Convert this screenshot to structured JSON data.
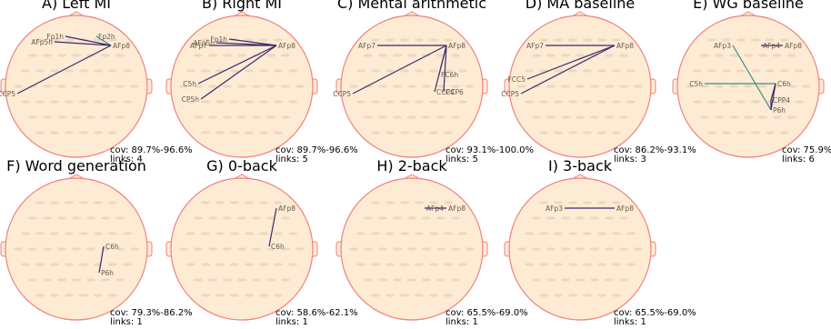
{
  "panels": [
    {
      "title": "A) Left MI",
      "coverage": "cov: 89.7%-96.6%",
      "links_text": "links: 4",
      "channels": [
        "Fp1h",
        "Fp2h",
        "AFp5h",
        "AFp8",
        "CCP5"
      ],
      "links": [
        [
          "Fp1h",
          "AFp8"
        ],
        [
          "Fp2h",
          "AFp8"
        ],
        [
          "AFp5h",
          "AFp8"
        ],
        [
          "CCP5",
          "AFp8"
        ]
      ]
    },
    {
      "title": "B) Right MI",
      "coverage": "cov: 89.7%-96.6%",
      "links_text": "links: 5",
      "channels": [
        "Fp1h",
        "AFp5h",
        "AFp7",
        "AFp8",
        "C5h",
        "CP5h"
      ],
      "links": [
        [
          "Fp1h",
          "AFp8"
        ],
        [
          "AFp5h",
          "AFp8"
        ],
        [
          "AFp7",
          "AFp8"
        ],
        [
          "C5h",
          "AFp8"
        ],
        [
          "CP5h",
          "AFp8"
        ]
      ]
    },
    {
      "title": "C) Mental arithmetic",
      "coverage": "cov: 93.1%-100.0%",
      "links_text": "links: 5",
      "channels": [
        "AFp7",
        "AFp8",
        "FC6h",
        "CCP5",
        "CCP4",
        "CCP6"
      ],
      "links": [
        [
          "AFp7",
          "AFp8"
        ],
        [
          "CCP5",
          "AFp8"
        ],
        [
          "FC6h",
          "AFp8"
        ],
        [
          "CCP4",
          "AFp8"
        ],
        [
          "CCP6",
          "AFp8"
        ]
      ]
    },
    {
      "title": "D) MA baseline",
      "coverage": "cov: 86.2%-93.1%",
      "links_text": "links: 3",
      "channels": [
        "AFp7",
        "AFp8",
        "FCC5",
        "CCP5"
      ],
      "links": [
        [
          "AFp7",
          "AFp8"
        ],
        [
          "FCC5",
          "AFp8"
        ],
        [
          "CCP5",
          "AFp8"
        ]
      ]
    },
    {
      "title": "E) WG baseline",
      "coverage": "cov: 75.9%-82.8%",
      "links_text": "links: 6",
      "channels": [
        "AFp3",
        "AFp4",
        "AFp8",
        "C5h",
        "C6h",
        "CPP4",
        "P6h"
      ],
      "links": [
        [
          "AFp4",
          "AFp8"
        ],
        [
          "AFp3",
          "P6h"
        ],
        [
          "C5h",
          "C6h"
        ],
        [
          "C6h",
          "P6h"
        ],
        [
          "C6h",
          "CPP4"
        ],
        [
          "CPP4",
          "P6h"
        ]
      ]
    },
    {
      "title": "F) Word generation",
      "coverage": "cov: 79.3%-86.2%",
      "links_text": "links: 1",
      "channels": [
        "C6h",
        "P6h"
      ],
      "links": [
        [
          "C6h",
          "P6h"
        ]
      ]
    },
    {
      "title": "G) 0-back",
      "coverage": "cov: 58.6%-62.1%",
      "links_text": "links: 1",
      "channels": [
        "AFp8",
        "C6h"
      ],
      "links": [
        [
          "AFp8",
          "C6h"
        ]
      ]
    },
    {
      "title": "H) 2-back",
      "coverage": "cov: 65.5%-69.0%",
      "links_text": "links: 1",
      "channels": [
        "AFp4",
        "AFp8"
      ],
      "links": [
        [
          "AFp4",
          "AFp8"
        ]
      ]
    },
    {
      "title": "I) 3-back",
      "coverage": "cov: 65.5%-69.0%",
      "links_text": "links: 1",
      "channels": [
        "AFp3",
        "AFp8"
      ],
      "links": [
        [
          "AFp3",
          "AFp8"
        ]
      ]
    }
  ],
  "colors": {
    "head_fill": "#fdebd3",
    "head_outline": "#f08080",
    "link_dark": "#3b2a6b",
    "link_teal": "#2f8f8a"
  }
}
